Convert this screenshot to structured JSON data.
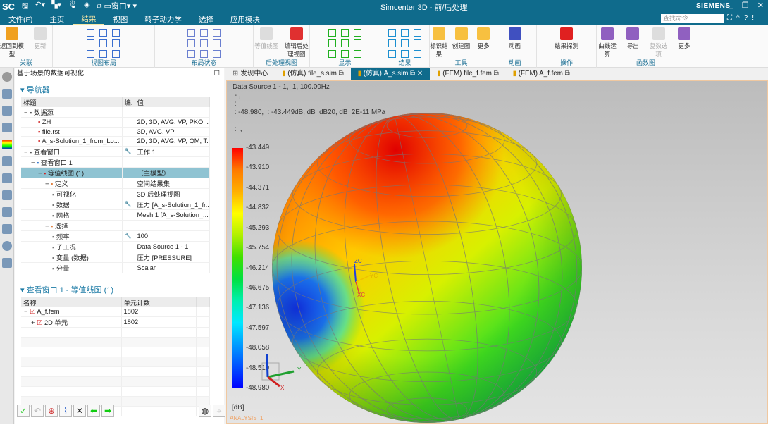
{
  "app": {
    "logo": "SC",
    "title": "Simcenter 3D - 前/后处理",
    "brand": "SIEMENS",
    "window_menu": "窗口",
    "search_placeholder": "查找命令"
  },
  "menu": [
    "文件(F)",
    "主页",
    "结果",
    "视图",
    "转子动力学",
    "选择",
    "应用模块"
  ],
  "menu_active": 2,
  "ribbon": {
    "groups": [
      {
        "label": "关联",
        "buttons": [
          {
            "label": "返回到模型"
          },
          {
            "label": "更新",
            "disabled": true
          }
        ]
      },
      {
        "label": "视图布局",
        "buttons": []
      },
      {
        "label": "布局状态",
        "buttons": []
      },
      {
        "label": "后处理视图",
        "buttons": [
          {
            "label": "等值线图",
            "disabled": true
          },
          {
            "label": "编辑后处理视图"
          }
        ]
      },
      {
        "label": "显示",
        "buttons": []
      },
      {
        "label": "结果",
        "buttons": []
      },
      {
        "label": "工具",
        "buttons": [
          {
            "label": "标识结果"
          },
          {
            "label": "创建图"
          },
          {
            "label": "更多"
          }
        ]
      },
      {
        "label": "动画",
        "buttons": [
          {
            "label": "动画"
          }
        ]
      },
      {
        "label": "操作",
        "buttons": [
          {
            "label": "结果探测"
          }
        ]
      },
      {
        "label": "函数图",
        "buttons": [
          {
            "label": "曲线运算"
          },
          {
            "label": "导出"
          },
          {
            "label": "复数选项",
            "disabled": true
          },
          {
            "label": "更多"
          }
        ]
      }
    ]
  },
  "panel": {
    "title": "基于场景的数据可视化",
    "navigator": {
      "label": "导航器",
      "headers": [
        "标题",
        "编.",
        "值"
      ],
      "rows": [
        {
          "title": "数据源",
          "edit": "",
          "value": "",
          "indent": 0,
          "expander": "−"
        },
        {
          "title": "ZH",
          "edit": "",
          "value": "2D, 3D, AVG, VP, PKO, ...",
          "indent": 2
        },
        {
          "title": "file.rst",
          "edit": "",
          "value": "3D, AVG, VP",
          "indent": 2
        },
        {
          "title": "A_s-Solution_1_from_Lo...",
          "edit": "",
          "value": "2D, 3D, AVG, VP, QM, T...",
          "indent": 2
        },
        {
          "title": "查看窗口",
          "edit": "wrench",
          "value": "工作 1",
          "indent": 0,
          "expander": "−"
        },
        {
          "title": "查看窗口 1",
          "edit": "",
          "value": "",
          "indent": 1,
          "expander": "−"
        },
        {
          "title": "等值线图 (1)",
          "edit": "",
          "value": "（主模型）",
          "indent": 2,
          "expander": "−",
          "selected": true
        },
        {
          "title": "定义",
          "edit": "",
          "value": "空间结果集",
          "indent": 3,
          "expander": "−"
        },
        {
          "title": "可视化",
          "edit": "",
          "value": "3D 后处理视图",
          "indent": 4
        },
        {
          "title": "数据",
          "edit": "wrench",
          "value": "压力 [A_s-Solution_1_fr...",
          "indent": 4
        },
        {
          "title": "网格",
          "edit": "",
          "value": "Mesh 1 [A_s-Solution_...",
          "indent": 4
        },
        {
          "title": "选择",
          "edit": "",
          "value": "",
          "indent": 3,
          "expander": "−"
        },
        {
          "title": "频率",
          "edit": "wrench",
          "value": "100",
          "indent": 4
        },
        {
          "title": "子工况",
          "edit": "",
          "value": "Data Source 1 - 1",
          "indent": 4
        },
        {
          "title": "变量 (数据)",
          "edit": "",
          "value": "压力 [PRESSURE]",
          "indent": 4
        },
        {
          "title": "分量",
          "edit": "",
          "value": "Scalar",
          "indent": 4
        }
      ]
    },
    "subpanel": {
      "label": "查看窗口 1 - 等值线图 (1)",
      "headers": [
        "名称",
        "单元计数"
      ],
      "rows": [
        {
          "name": "A_f.fem",
          "count": "1802",
          "expander": "−",
          "checked": true
        },
        {
          "name": "2D 单元",
          "count": "1802",
          "expander": "+",
          "checked": true
        }
      ]
    }
  },
  "tabs": [
    {
      "label": "发现中心"
    },
    {
      "label": "(仿真) file_s.sim"
    },
    {
      "label": "(仿真) A_s.sim",
      "active": true
    },
    {
      "label": "(FEM) file_f.fem"
    },
    {
      "label": "(FEM) A_f.fem"
    }
  ],
  "viewport": {
    "info": "Data Source 1 - 1,  1, 100.00Hz\n - ,\n :\n : -48.980,  : -43.449dB, dB  dB20, dB  2E-11 MPa\n\n :  ,",
    "legend": [
      "-43.449",
      "-43.910",
      "-44.371",
      "-44.832",
      "-45.293",
      "-45.754",
      "-46.214",
      "-46.675",
      "-47.136",
      "-47.597",
      "-48.058",
      "-48.519",
      "-48.980"
    ],
    "unit": "[dB]",
    "analysis": "ANALYSIS_1",
    "triad": {
      "x": "X",
      "y": "Y",
      "zc": "ZC",
      "yc": "YC",
      "xc": "XC"
    }
  }
}
